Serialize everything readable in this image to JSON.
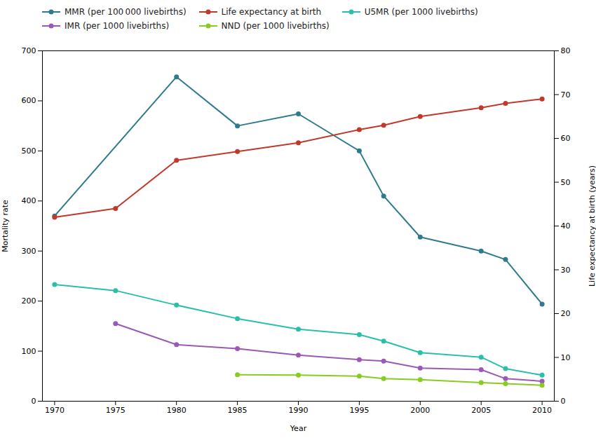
{
  "chart_data": {
    "type": "line",
    "xlabel": "Year",
    "ylabel": "Mortality rate",
    "y2label": "Life expectancy at birth (years)",
    "x": [
      1970,
      1975,
      1980,
      1985,
      1990,
      1995,
      1997,
      2000,
      2005,
      2007,
      2010
    ],
    "xlim": [
      1969,
      2011
    ],
    "xticks": [
      1970,
      1975,
      1980,
      1985,
      1990,
      1995,
      2000,
      2005,
      2010
    ],
    "ylim": [
      0,
      700
    ],
    "yticks": [
      0,
      100,
      200,
      300,
      400,
      500,
      600,
      700
    ],
    "y2lim": [
      0,
      80
    ],
    "y2ticks": [
      0,
      10,
      20,
      30,
      40,
      50,
      60,
      70,
      80
    ],
    "grid": false,
    "legend": "top",
    "marker": "circle",
    "series": [
      {
        "name": "MMR (per 100 000 livebirths)",
        "color": "#2e7b8c",
        "values": [
          370,
          null,
          648,
          550,
          574,
          500,
          410,
          328,
          300,
          283,
          194
        ]
      },
      {
        "name": "Life expectancy at birth",
        "color": "#c0392b",
        "axis": "y2",
        "values": [
          42,
          44,
          55,
          57,
          59,
          62,
          63,
          65,
          67,
          68,
          69
        ]
      },
      {
        "name": "U5MR (per 1000 livebirths)",
        "color": "#2bbfaa",
        "values": [
          233,
          221,
          192,
          165,
          144,
          133,
          120,
          97,
          88,
          65,
          52
        ]
      },
      {
        "name": "IMR (per 1000 livebirths)",
        "color": "#9b59b6",
        "values": [
          null,
          155,
          113,
          105,
          92,
          83,
          80,
          66,
          63,
          45,
          40
        ]
      },
      {
        "name": "NND (per 1000 livebirths)",
        "color": "#88cc22",
        "values": [
          null,
          null,
          null,
          53,
          52,
          50,
          45,
          43,
          37,
          35,
          32
        ]
      }
    ]
  }
}
